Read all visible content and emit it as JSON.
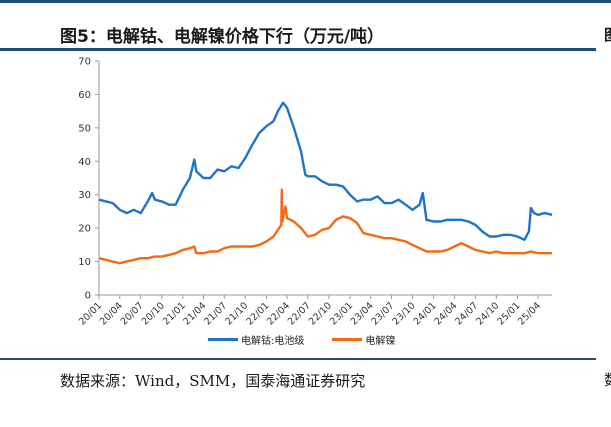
{
  "title": "图5：电解钴、电解镍价格下行（万元/吨）",
  "source": "数据来源：Wind，SMM，国泰海通证券研究",
  "next_title_fragment": "图",
  "next_source_fragment": "数",
  "colors": {
    "series_cobalt": "#1f74c8",
    "series_nickel": "#f26b14",
    "rule": "#1f4e79",
    "axis": "#9a9a9a"
  },
  "chart_data": {
    "type": "line",
    "title": "电解钴、电解镍价格下行（万元/吨）",
    "xlabel": "",
    "ylabel": "",
    "ylim": [
      0,
      70
    ],
    "yticks": [
      0,
      10,
      20,
      30,
      40,
      50,
      60,
      70
    ],
    "x_axis": {
      "type": "month",
      "start": "2020-01",
      "end": "2025-06"
    },
    "xticks": [
      "20/01",
      "20/04",
      "20/07",
      "20/10",
      "21/01",
      "21/04",
      "21/07",
      "21/10",
      "22/01",
      "22/04",
      "22/07",
      "22/10",
      "23/01",
      "23/04",
      "23/07",
      "23/10",
      "24/01",
      "24/04",
      "24/07",
      "24/10",
      "25/01",
      "25/04"
    ],
    "grid": false,
    "legend_position": "bottom",
    "series": [
      {
        "name": "电解钴:电池级",
        "color": "#1f74c8",
        "points": [
          [
            "2020-01-01",
            28.5
          ],
          [
            "2020-02-01",
            28.0
          ],
          [
            "2020-03-01",
            27.5
          ],
          [
            "2020-04-01",
            25.5
          ],
          [
            "2020-05-01",
            24.5
          ],
          [
            "2020-06-01",
            25.5
          ],
          [
            "2020-07-01",
            24.5
          ],
          [
            "2020-08-01",
            28.0
          ],
          [
            "2020-08-20",
            30.5
          ],
          [
            "2020-09-01",
            28.5
          ],
          [
            "2020-10-01",
            28.0
          ],
          [
            "2020-11-01",
            27.0
          ],
          [
            "2020-12-01",
            27.0
          ],
          [
            "2021-01-01",
            31.5
          ],
          [
            "2021-02-01",
            35.0
          ],
          [
            "2021-02-20",
            40.5
          ],
          [
            "2021-03-01",
            37.0
          ],
          [
            "2021-04-01",
            35.0
          ],
          [
            "2021-05-01",
            35.0
          ],
          [
            "2021-06-01",
            37.5
          ],
          [
            "2021-07-01",
            37.0
          ],
          [
            "2021-08-01",
            38.5
          ],
          [
            "2021-09-01",
            38.0
          ],
          [
            "2021-10-01",
            41.0
          ],
          [
            "2021-11-01",
            45.0
          ],
          [
            "2021-12-01",
            48.5
          ],
          [
            "2022-01-01",
            50.5
          ],
          [
            "2022-02-01",
            52.0
          ],
          [
            "2022-02-20",
            55.0
          ],
          [
            "2022-03-15",
            57.5
          ],
          [
            "2022-04-01",
            56.0
          ],
          [
            "2022-05-01",
            50.0
          ],
          [
            "2022-06-01",
            43.0
          ],
          [
            "2022-06-20",
            36.0
          ],
          [
            "2022-07-01",
            35.5
          ],
          [
            "2022-08-01",
            35.5
          ],
          [
            "2022-09-01",
            34.0
          ],
          [
            "2022-10-01",
            33.0
          ],
          [
            "2022-11-01",
            33.0
          ],
          [
            "2022-12-01",
            32.5
          ],
          [
            "2023-01-01",
            30.0
          ],
          [
            "2023-02-01",
            28.0
          ],
          [
            "2023-03-01",
            28.5
          ],
          [
            "2023-04-01",
            28.5
          ],
          [
            "2023-05-01",
            29.5
          ],
          [
            "2023-06-01",
            27.5
          ],
          [
            "2023-07-01",
            27.5
          ],
          [
            "2023-08-01",
            28.5
          ],
          [
            "2023-09-01",
            27.0
          ],
          [
            "2023-10-01",
            25.5
          ],
          [
            "2023-11-01",
            27.0
          ],
          [
            "2023-11-15",
            30.5
          ],
          [
            "2023-12-01",
            22.5
          ],
          [
            "2024-01-01",
            22.0
          ],
          [
            "2024-02-01",
            22.0
          ],
          [
            "2024-03-01",
            22.5
          ],
          [
            "2024-04-01",
            22.5
          ],
          [
            "2024-05-01",
            22.5
          ],
          [
            "2024-06-01",
            22.0
          ],
          [
            "2024-07-01",
            21.0
          ],
          [
            "2024-08-01",
            19.0
          ],
          [
            "2024-09-01",
            17.5
          ],
          [
            "2024-10-01",
            17.5
          ],
          [
            "2024-11-01",
            18.0
          ],
          [
            "2024-12-01",
            18.0
          ],
          [
            "2025-01-01",
            17.5
          ],
          [
            "2025-02-01",
            16.5
          ],
          [
            "2025-02-20",
            19.0
          ],
          [
            "2025-03-01",
            26.0
          ],
          [
            "2025-03-15",
            24.5
          ],
          [
            "2025-04-01",
            24.0
          ],
          [
            "2025-05-01",
            24.5
          ],
          [
            "2025-06-01",
            24.0
          ]
        ]
      },
      {
        "name": "电解镍",
        "color": "#f26b14",
        "points": [
          [
            "2020-01-01",
            11.0
          ],
          [
            "2020-02-01",
            10.5
          ],
          [
            "2020-03-01",
            10.0
          ],
          [
            "2020-04-01",
            9.5
          ],
          [
            "2020-05-01",
            10.0
          ],
          [
            "2020-06-01",
            10.5
          ],
          [
            "2020-07-01",
            11.0
          ],
          [
            "2020-08-01",
            11.0
          ],
          [
            "2020-09-01",
            11.5
          ],
          [
            "2020-10-01",
            11.5
          ],
          [
            "2020-11-01",
            12.0
          ],
          [
            "2020-12-01",
            12.5
          ],
          [
            "2021-01-01",
            13.5
          ],
          [
            "2021-02-01",
            14.0
          ],
          [
            "2021-02-20",
            14.5
          ],
          [
            "2021-03-01",
            12.5
          ],
          [
            "2021-04-01",
            12.5
          ],
          [
            "2021-05-01",
            13.0
          ],
          [
            "2021-06-01",
            13.0
          ],
          [
            "2021-07-01",
            14.0
          ],
          [
            "2021-08-01",
            14.5
          ],
          [
            "2021-09-01",
            14.5
          ],
          [
            "2021-10-01",
            14.5
          ],
          [
            "2021-11-01",
            14.5
          ],
          [
            "2021-12-01",
            15.0
          ],
          [
            "2022-01-01",
            16.0
          ],
          [
            "2022-02-01",
            17.5
          ],
          [
            "2022-03-07",
            21.0
          ],
          [
            "2022-03-09",
            31.5
          ],
          [
            "2022-03-12",
            22.0
          ],
          [
            "2022-03-25",
            26.5
          ],
          [
            "2022-04-01",
            23.0
          ],
          [
            "2022-05-01",
            22.0
          ],
          [
            "2022-06-01",
            20.0
          ],
          [
            "2022-07-01",
            17.5
          ],
          [
            "2022-08-01",
            18.0
          ],
          [
            "2022-09-01",
            19.5
          ],
          [
            "2022-10-01",
            20.0
          ],
          [
            "2022-11-01",
            22.5
          ],
          [
            "2022-12-01",
            23.5
          ],
          [
            "2023-01-01",
            23.0
          ],
          [
            "2023-02-01",
            21.5
          ],
          [
            "2023-03-01",
            18.5
          ],
          [
            "2023-04-01",
            18.0
          ],
          [
            "2023-05-01",
            17.5
          ],
          [
            "2023-06-01",
            17.0
          ],
          [
            "2023-07-01",
            17.0
          ],
          [
            "2023-08-01",
            16.5
          ],
          [
            "2023-09-01",
            16.0
          ],
          [
            "2023-10-01",
            15.0
          ],
          [
            "2023-11-01",
            14.0
          ],
          [
            "2023-12-01",
            13.0
          ],
          [
            "2024-01-01",
            13.0
          ],
          [
            "2024-02-01",
            13.0
          ],
          [
            "2024-03-01",
            13.5
          ],
          [
            "2024-04-01",
            14.5
          ],
          [
            "2024-05-01",
            15.5
          ],
          [
            "2024-06-01",
            14.5
          ],
          [
            "2024-07-01",
            13.5
          ],
          [
            "2024-08-01",
            13.0
          ],
          [
            "2024-09-01",
            12.5
          ],
          [
            "2024-10-01",
            13.0
          ],
          [
            "2024-11-01",
            12.5
          ],
          [
            "2024-12-01",
            12.5
          ],
          [
            "2025-01-01",
            12.5
          ],
          [
            "2025-02-01",
            12.5
          ],
          [
            "2025-03-01",
            13.0
          ],
          [
            "2025-04-01",
            12.5
          ],
          [
            "2025-05-01",
            12.5
          ],
          [
            "2025-06-01",
            12.5
          ]
        ]
      }
    ]
  }
}
